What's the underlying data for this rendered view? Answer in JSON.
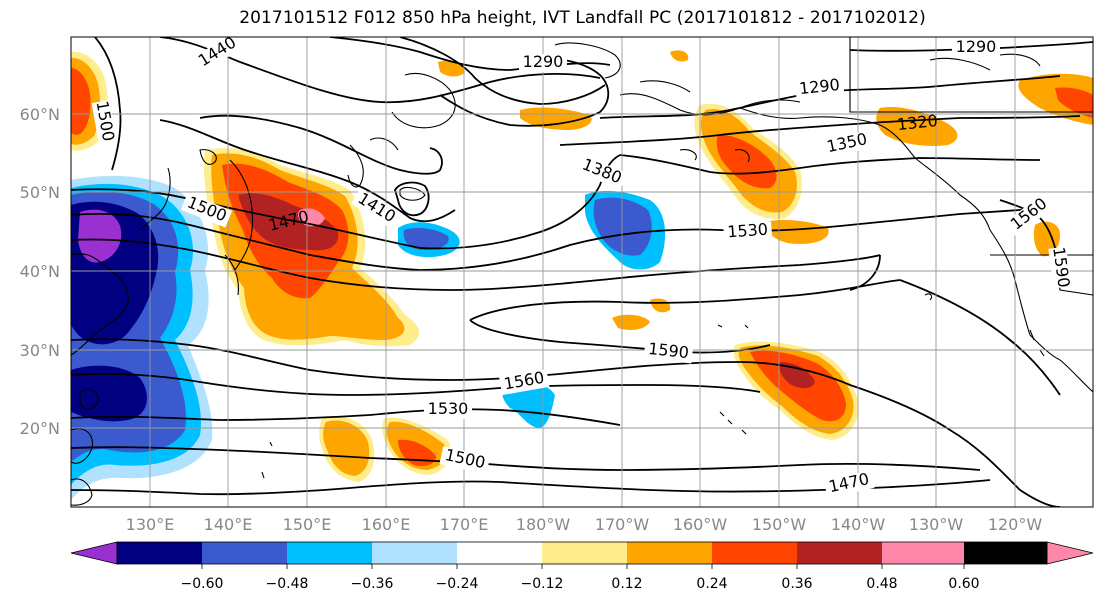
{
  "title": "2017101512 F012 850 hPa height, IVT Landfall PC (2017101812 - 2017102012)",
  "map": {
    "lat_labels": [
      "60°N",
      "50°N",
      "40°N",
      "30°N",
      "20°N"
    ],
    "lon_labels": [
      "130°E",
      "140°E",
      "150°E",
      "160°E",
      "170°E",
      "180°W",
      "170°W",
      "160°W",
      "150°W",
      "140°W",
      "130°W",
      "120°W"
    ],
    "contour_labels": [
      "1440",
      "1290",
      "1500",
      "1290",
      "1290",
      "1320",
      "1350",
      "1380",
      "1410",
      "1470",
      "1500",
      "1530",
      "1560",
      "1590",
      "1590",
      "1560",
      "1530",
      "1500",
      "1470"
    ],
    "grid": true,
    "coastline_color": "#000000"
  },
  "colorbar": {
    "tick_labels": [
      "−0.60",
      "−0.48",
      "−0.36",
      "−0.24",
      "−0.12",
      "0.12",
      "0.24",
      "0.36",
      "0.48",
      "0.60"
    ],
    "colors": [
      "#9b30d0",
      "#000080",
      "#3a5acd",
      "#00bfff",
      "#b0e2ff",
      "#ffffff",
      "#ffec8b",
      "#ffa500",
      "#ff4500",
      "#b22222",
      "#ff88aa"
    ],
    "extend": "both"
  }
}
